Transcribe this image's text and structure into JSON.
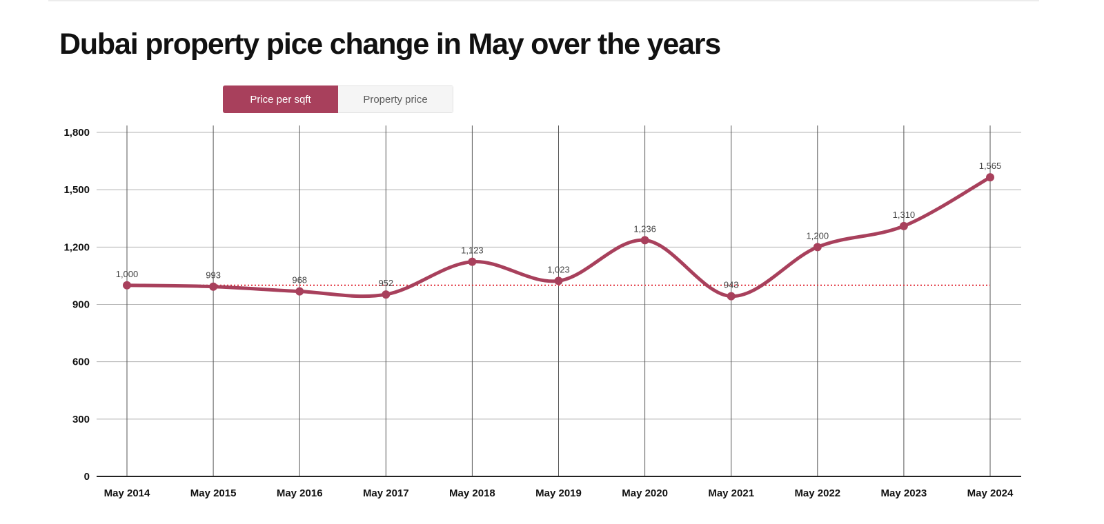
{
  "page": {
    "title": "Dubai property pice change in May over the years"
  },
  "toggle": {
    "active_label": "Price per sqft",
    "inactive_label": "Property price"
  },
  "colors": {
    "series": "#a8405c",
    "reference_line": "#e0303a",
    "grid_horizontal": "#b0b0b0",
    "grid_vertical": "#555555",
    "axis": "#222222"
  },
  "chart_data": {
    "type": "line",
    "title": "",
    "xlabel": "",
    "ylabel": "",
    "categories": [
      "May 2014",
      "May 2015",
      "May 2016",
      "May 2017",
      "May 2018",
      "May 2019",
      "May 2020",
      "May 2021",
      "May 2022",
      "May 2023",
      "May 2024"
    ],
    "series": [
      {
        "values": [
          1000,
          993,
          968,
          952,
          1123,
          1023,
          1236,
          943,
          1200,
          1310,
          1565
        ],
        "data_labels": [
          "1,000",
          "993",
          "968",
          "952",
          "1,123",
          "1,023",
          "1,236",
          "943",
          "1,200",
          "1,310",
          "1,565"
        ]
      }
    ],
    "reference_line": {
      "value": 1000,
      "style": "dotted"
    },
    "ylim": [
      0,
      1800
    ],
    "yticks": [
      0,
      300,
      600,
      900,
      1200,
      1500,
      1800
    ],
    "ytick_labels": [
      "0",
      "300",
      "600",
      "900",
      "1,200",
      "1,500",
      "1,800"
    ],
    "smooth": true,
    "grid": true,
    "legend": "none"
  }
}
